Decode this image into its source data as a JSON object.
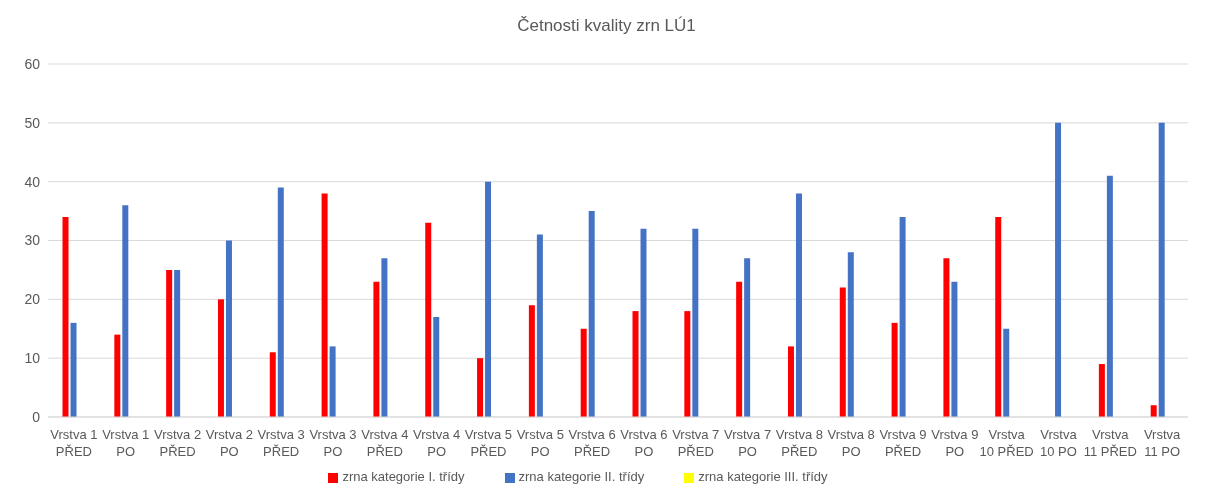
{
  "chart_data": {
    "type": "bar",
    "title": "Četnosti kvality zrn LÚ1",
    "categories": [
      "Vrstva 1 PŘED",
      "Vrstva 1 PO",
      "Vrstva 2 PŘED",
      "Vrstva 2 PO",
      "Vrstva 3 PŘED",
      "Vrstva 3 PO",
      "Vrstva 4 PŘED",
      "Vrstva 4 PO",
      "Vrstva 5 PŘED",
      "Vrstva 5 PO",
      "Vrstva 6 PŘED",
      "Vrstva 6 PO",
      "Vrstva 7 PŘED",
      "Vrstva 7 PO",
      "Vrstva 8 PŘED",
      "Vrstva 8 PO",
      "Vrstva 9 PŘED",
      "Vrstva 9 PO",
      "Vrstva 10 PŘED",
      "Vrstva 10 PO",
      "Vrstva 11 PŘED",
      "Vrstva 11 PO"
    ],
    "series": [
      {
        "name": "zrna kategorie I. třídy",
        "color": "#ff0000",
        "values": [
          34,
          14,
          25,
          20,
          11,
          38,
          23,
          33,
          10,
          19,
          15,
          18,
          18,
          23,
          12,
          22,
          16,
          27,
          34,
          0,
          9,
          2
        ]
      },
      {
        "name": "zrna kategorie II. třídy",
        "color": "#4472c4",
        "values": [
          16,
          36,
          25,
          30,
          39,
          12,
          27,
          17,
          40,
          31,
          35,
          32,
          32,
          27,
          38,
          28,
          34,
          23,
          15,
          50,
          41,
          50
        ]
      },
      {
        "name": "zrna kategorie III. třídy",
        "color": "#ffff00",
        "values": [
          0,
          0,
          0,
          0,
          0,
          0,
          0,
          0,
          0,
          0,
          0,
          0,
          0,
          0,
          0,
          0,
          0,
          0,
          0,
          0,
          0,
          0
        ]
      }
    ],
    "ylim": [
      0,
      60
    ],
    "yticks": [
      0,
      10,
      20,
      30,
      40,
      50,
      60
    ],
    "grid": "y",
    "legend": "bottom"
  }
}
